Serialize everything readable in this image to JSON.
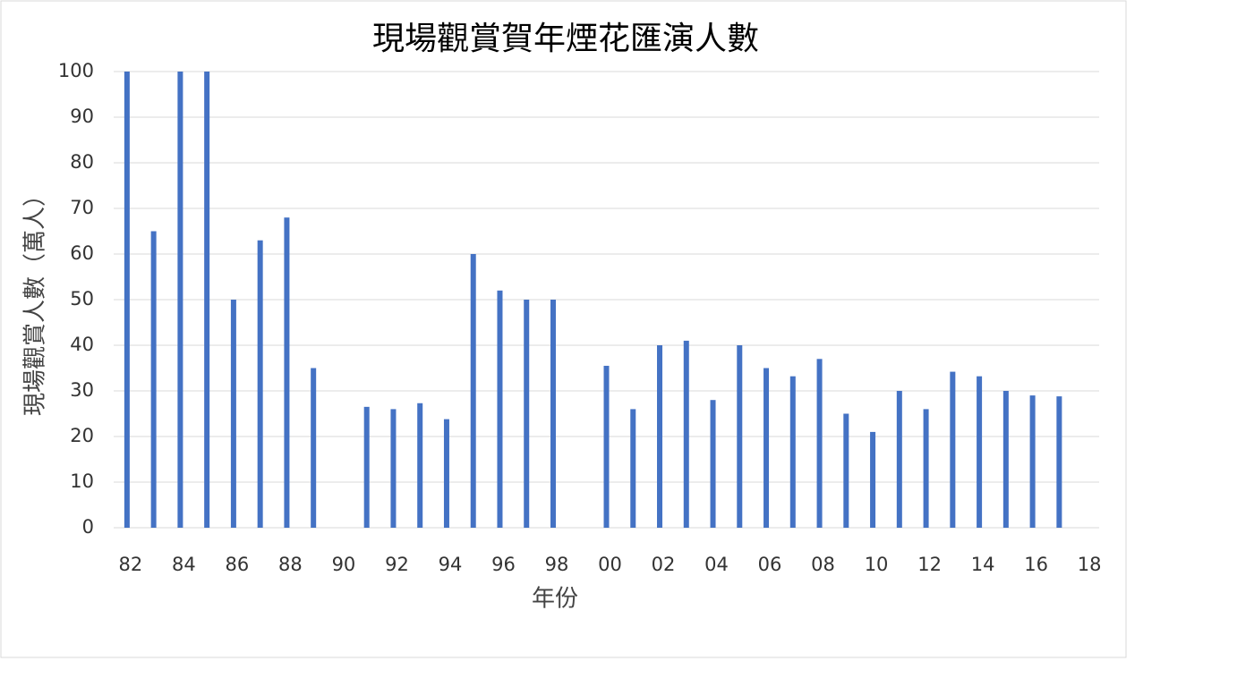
{
  "chart_data": {
    "type": "bar",
    "title": "現場觀賞賀年煙花匯演人數",
    "x_label": "年份",
    "y_label": "現場觀賞人數（萬人）",
    "categories": [
      "82",
      null,
      "84",
      null,
      "86",
      null,
      "88",
      null,
      "90",
      null,
      "92",
      null,
      "94",
      null,
      "96",
      null,
      "98",
      null,
      "00",
      null,
      "02",
      null,
      "04",
      null,
      "06",
      null,
      "08",
      null,
      "10",
      null,
      "12",
      null,
      "14",
      null,
      "16",
      null,
      "18"
    ],
    "values": [
      100,
      65,
      100,
      100,
      50,
      63,
      68,
      35,
      null,
      26.5,
      26,
      27.3,
      23.8,
      60,
      52,
      50,
      50,
      null,
      35.5,
      26,
      40,
      41,
      28,
      40,
      35,
      33.2,
      37,
      25,
      21,
      30,
      26,
      34.2,
      33.2,
      30,
      29,
      28.8,
      null
    ],
    "color": "#4472c4",
    "ylim": [
      0,
      100
    ],
    "yticks": [
      0,
      10,
      20,
      30,
      40,
      50,
      60,
      70,
      80,
      90,
      100
    ],
    "grid": true
  }
}
